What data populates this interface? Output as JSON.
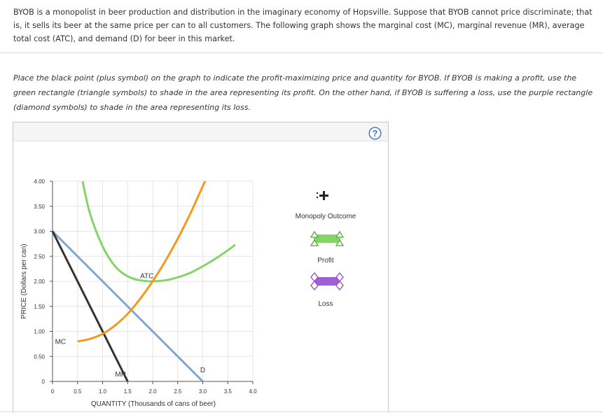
{
  "intro_text": "BYOB is a monopolist in beer production and distribution in the imaginary economy of Hopsville. Suppose that BYOB cannot price discriminate; that is, it sells its beer at the same price per can to all customers. The following graph shows the marginal cost (MC), marginal revenue (MR), average total cost (ATC), and demand (D) for beer in this market.",
  "instructions_text": "Place the black point (plus symbol) on the graph to indicate the profit-maximizing price and quantity for BYOB. If BYOB is making a profit, use the green rectangle (triangle symbols) to shade in the area representing its profit. On the other hand, if BYOB is suffering a loss, use the purple rectangle (diamond symbols) to shade in the area representing its loss.",
  "help_label": "?",
  "legend": {
    "monopoly_outcome": "Monopoly Outcome",
    "profit": "Profit",
    "loss": "Loss"
  },
  "chart_data": {
    "type": "line",
    "xlabel": "QUANTITY (Thousands of cans of beer)",
    "ylabel": "PRICE (Dollars per can)",
    "xlim": [
      0,
      4.0
    ],
    "ylim": [
      0,
      4.0
    ],
    "x_ticks": [
      0,
      0.5,
      1.0,
      1.5,
      2.0,
      2.5,
      3.0,
      3.5,
      4.0
    ],
    "x_tick_labels": [
      "0",
      "0.5",
      "1.0",
      "1.5",
      "2.0",
      "2.5",
      "3.0",
      "3.5",
      "4.0"
    ],
    "y_ticks": [
      0,
      0.5,
      1.0,
      1.5,
      2.0,
      2.5,
      3.0,
      3.5,
      4.0
    ],
    "y_tick_labels": [
      "0",
      "0.50",
      "1.00",
      "1.50",
      "2.00",
      "2.50",
      "3.00",
      "3.50",
      "4.00"
    ],
    "grid": true,
    "series": [
      {
        "name": "D",
        "color": "#7ea6d2",
        "points": [
          [
            0,
            3.0
          ],
          [
            3.0,
            0
          ]
        ]
      },
      {
        "name": "MR",
        "color": "#333333",
        "points": [
          [
            0,
            3.0
          ],
          [
            1.5,
            0
          ]
        ]
      },
      {
        "name": "MC",
        "color": "#f5991d",
        "points": [
          [
            0.5,
            0.8
          ],
          [
            0.75,
            0.85
          ],
          [
            1.0,
            0.95
          ],
          [
            1.25,
            1.12
          ],
          [
            1.5,
            1.35
          ],
          [
            1.75,
            1.65
          ],
          [
            2.0,
            2.0
          ],
          [
            2.25,
            2.4
          ],
          [
            2.5,
            2.85
          ],
          [
            2.75,
            3.35
          ],
          [
            3.0,
            3.9
          ],
          [
            3.05,
            4.0
          ]
        ]
      },
      {
        "name": "ATC",
        "color": "#85d46a",
        "points": [
          [
            0.6,
            4.0
          ],
          [
            0.75,
            3.35
          ],
          [
            1.0,
            2.7
          ],
          [
            1.25,
            2.3
          ],
          [
            1.5,
            2.1
          ],
          [
            1.75,
            2.02
          ],
          [
            2.0,
            2.0
          ],
          [
            2.25,
            2.02
          ],
          [
            2.5,
            2.08
          ],
          [
            2.75,
            2.17
          ],
          [
            3.0,
            2.3
          ],
          [
            3.25,
            2.45
          ],
          [
            3.5,
            2.62
          ],
          [
            3.65,
            2.73
          ]
        ]
      }
    ],
    "curve_labels": [
      {
        "text": "ATC",
        "x": 1.75,
        "y": 2.06
      },
      {
        "text": "MC",
        "x": 0.05,
        "y": 0.75
      },
      {
        "text": "MR",
        "x": 1.25,
        "y": 0.1
      },
      {
        "text": "D",
        "x": 2.95,
        "y": 0.18
      }
    ]
  }
}
